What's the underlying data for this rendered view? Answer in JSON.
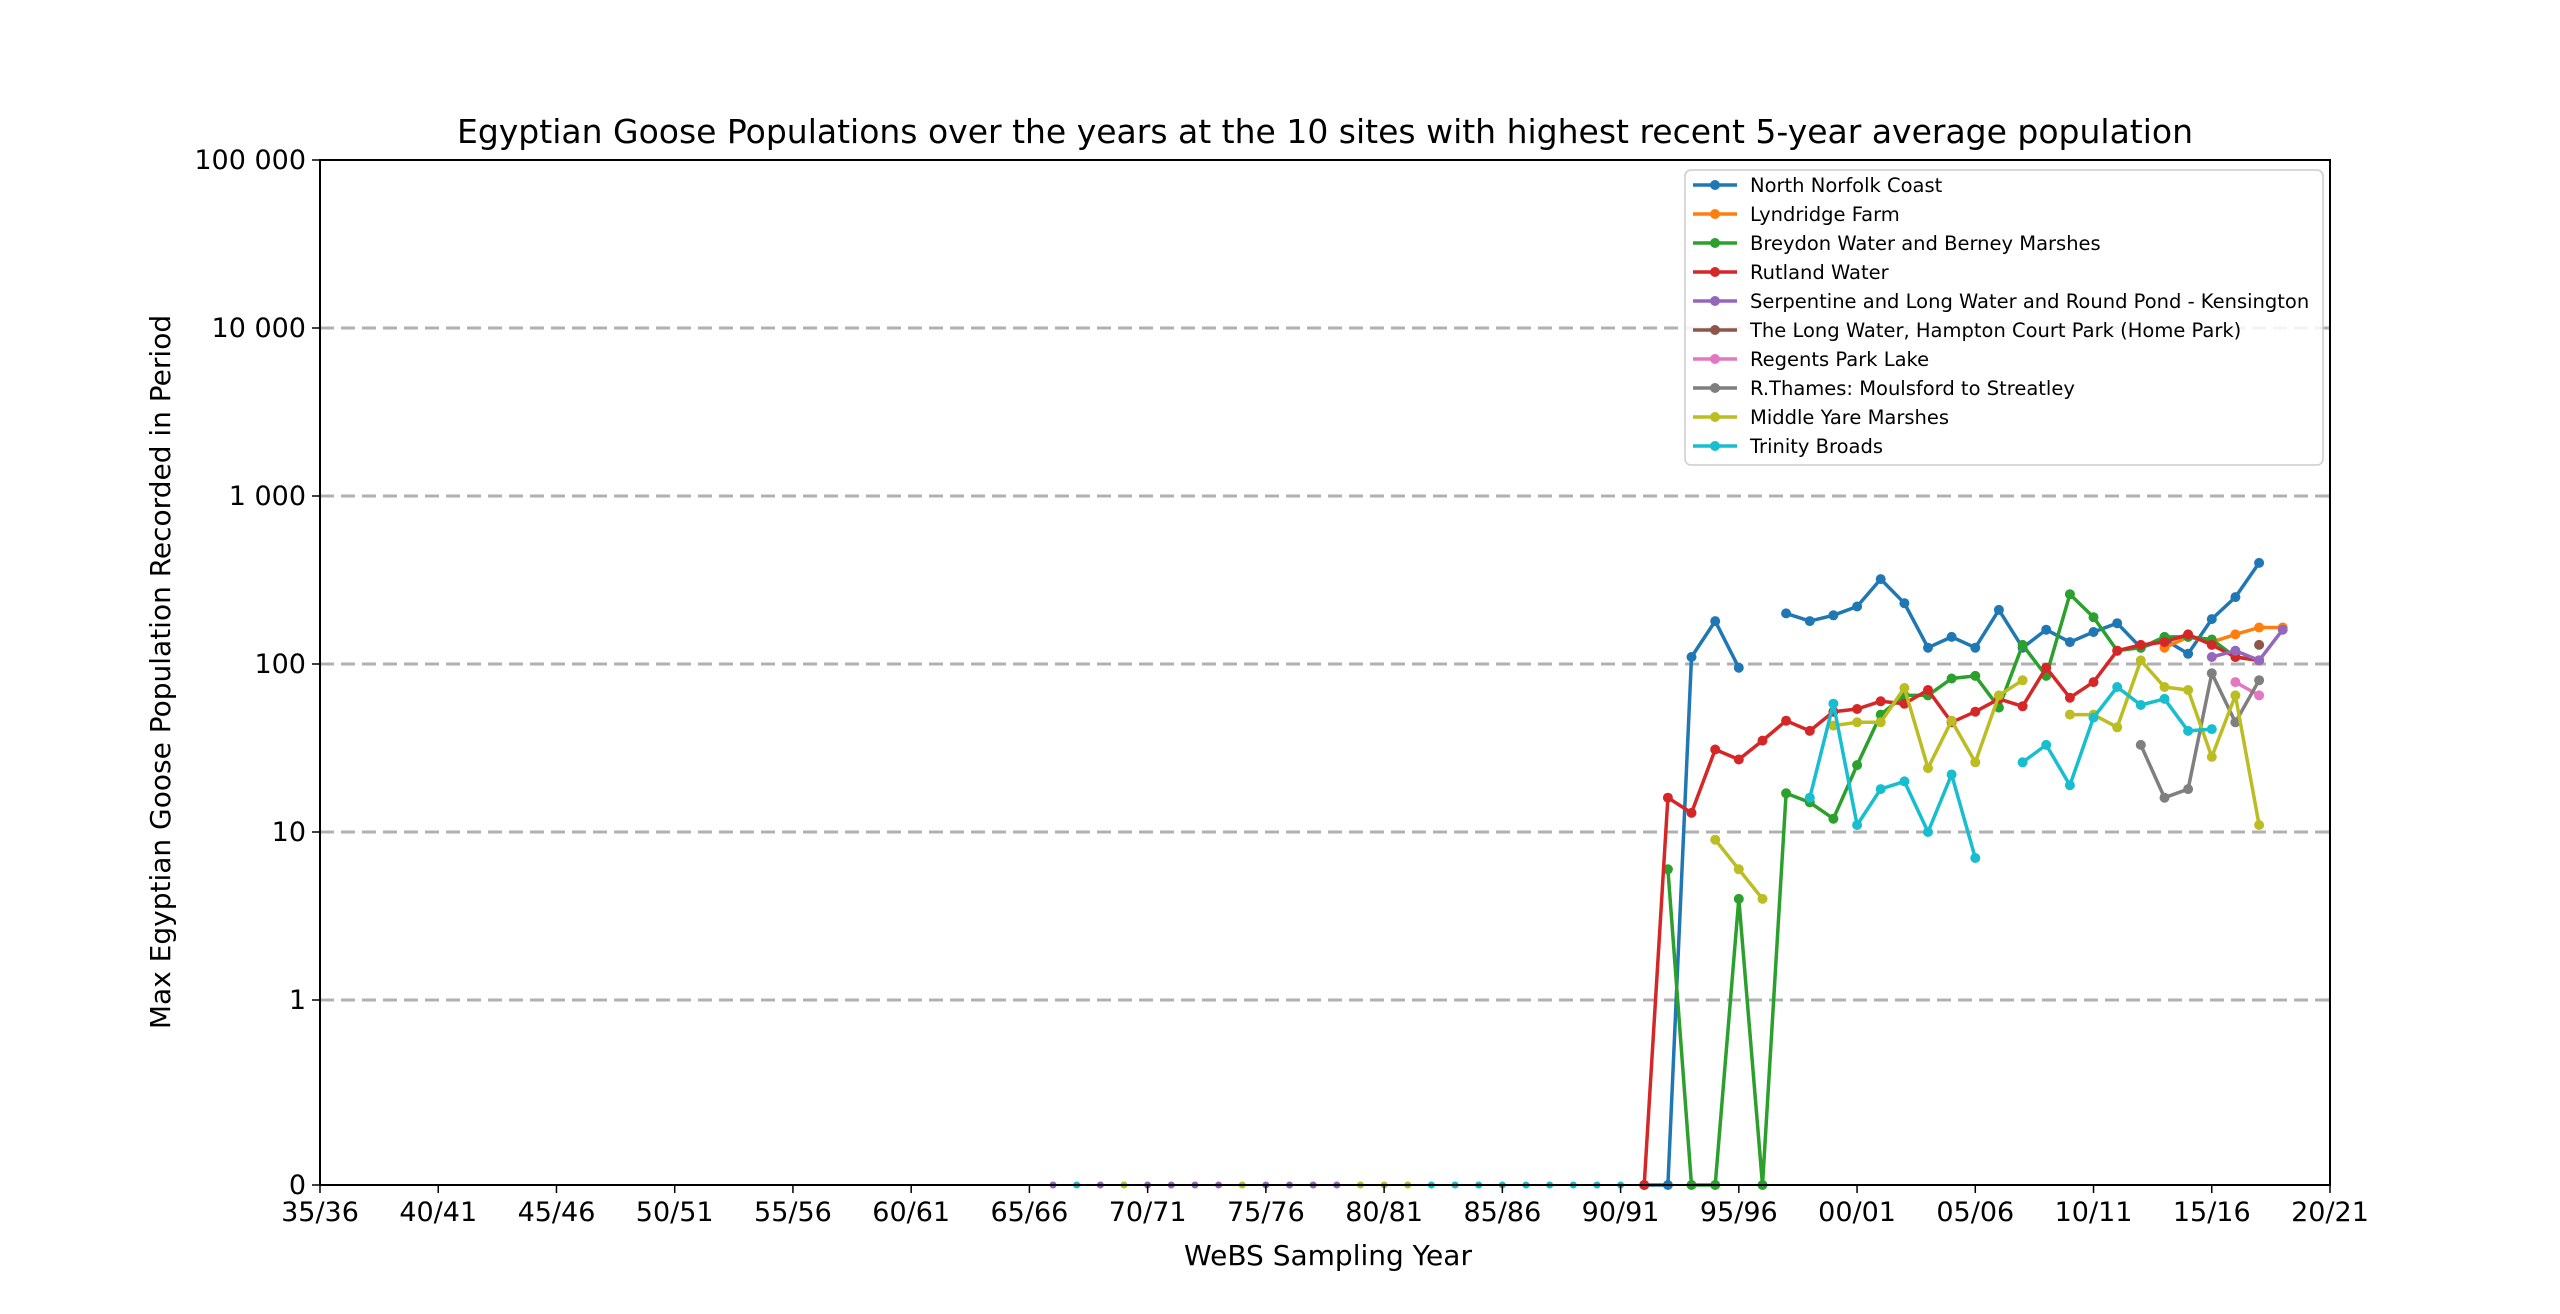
{
  "chart_data": {
    "type": "line",
    "title": "Egyptian Goose Populations over the years at the 10 sites with highest recent 5-year average population",
    "xlabel": "WeBS Sampling Year",
    "ylabel": "Max Egyptian Goose Population Recorded in Period",
    "x_tick_labels": [
      "35/36",
      "40/41",
      "45/46",
      "50/51",
      "55/56",
      "60/61",
      "65/66",
      "70/71",
      "75/76",
      "80/81",
      "85/86",
      "90/91",
      "95/96",
      "00/01",
      "05/06",
      "10/11",
      "15/16",
      "20/21"
    ],
    "y_tick_labels": [
      "0",
      "1",
      "10",
      "100",
      "1 000",
      "10 000",
      "100 000"
    ],
    "y_tick_values": [
      0,
      1,
      10,
      100,
      1000,
      10000,
      100000
    ],
    "y_scale": "symlog",
    "xlim": [
      "35/36",
      "20/21"
    ],
    "ylim": [
      0,
      100000
    ],
    "grid": "horizontal dashed",
    "legend_position": "upper right",
    "zero_markers": {
      "start": "66/67",
      "end": "90/91",
      "colors": [
        "#9467bd",
        "#17becf",
        "#9467bd",
        "#bcbd22",
        "#9467bd",
        "#9467bd",
        "#9467bd",
        "#9467bd",
        "#bcbd22",
        "#9467bd",
        "#9467bd",
        "#9467bd",
        "#9467bd",
        "#bcbd22",
        "#bcbd22",
        "#bcbd22",
        "#17becf",
        "#17becf",
        "#17becf",
        "#17becf",
        "#17becf",
        "#17becf",
        "#17becf",
        "#17becf",
        "#17becf"
      ]
    },
    "series": [
      {
        "name": "North Norfolk Coast",
        "color": "#1f77b4",
        "segments": [
          {
            "start": "91/92",
            "values": [
              0,
              0,
              110,
              180,
              95
            ]
          },
          {
            "start": "97/98",
            "values": [
              200,
              180,
              195,
              220,
              320,
              230,
              125,
              145,
              125,
              210,
              125,
              160,
              135,
              155,
              175,
              125,
              140,
              115,
              185,
              250,
              400
            ]
          }
        ]
      },
      {
        "name": "Lyndridge Farm",
        "color": "#ff7f0e",
        "segments": [
          {
            "start": "13/14",
            "values": [
              125,
              145,
              135,
              150,
              165,
              165
            ]
          }
        ]
      },
      {
        "name": "Breydon Water and Berney Marshes",
        "color": "#2ca02c",
        "segments": [
          {
            "start": "92/93",
            "values": [
              6,
              0,
              0,
              4,
              0,
              17,
              15,
              12,
              25,
              50,
              65,
              65,
              82,
              85,
              55,
              130,
              85,
              260,
              190,
              120,
              125,
              145,
              145,
              140,
              110,
              105
            ]
          }
        ]
      },
      {
        "name": "Rutland Water",
        "color": "#d62728",
        "segments": [
          {
            "start": "91/92",
            "values": [
              0,
              16,
              13,
              31,
              27,
              35,
              46,
              40,
              52,
              54,
              60,
              58,
              70,
              45,
              52,
              62,
              56,
              95,
              63,
              78,
              120,
              130,
              135,
              150,
              130,
              110,
              105
            ]
          }
        ]
      },
      {
        "name": "Serpentine and Long Water and Round Pond - Kensington",
        "color": "#9467bd",
        "segments": [
          {
            "start": "15/16",
            "values": [
              110,
              120,
              105,
              160
            ]
          }
        ]
      },
      {
        "name": "The Long Water, Hampton Court Park (Home Park)",
        "color": "#8c564b",
        "segments": [
          {
            "start": "17/18",
            "values": [
              130
            ]
          }
        ]
      },
      {
        "name": "Regents Park Lake",
        "color": "#e377c2",
        "segments": [
          {
            "start": "16/17",
            "values": [
              78,
              65
            ]
          }
        ]
      },
      {
        "name": "R.Thames: Moulsford to Streatley",
        "color": "#7f7f7f",
        "segments": [
          {
            "start": "12/13",
            "values": [
              33,
              16,
              18,
              88,
              45,
              80
            ]
          }
        ]
      },
      {
        "name": "Middle Yare Marshes",
        "color": "#bcbd22",
        "segments": [
          {
            "start": "94/95",
            "values": [
              9,
              6,
              4
            ]
          },
          {
            "start": "99/00",
            "values": [
              43,
              45,
              45,
              72,
              24,
              46,
              26,
              65,
              80
            ]
          },
          {
            "start": "09/10",
            "values": [
              50,
              50,
              42,
              105,
              73,
              70,
              28,
              65,
              11
            ]
          }
        ]
      },
      {
        "name": "Trinity Broads",
        "color": "#17becf",
        "segments": [
          {
            "start": "98/99",
            "values": [
              16,
              58,
              11,
              18,
              20,
              10,
              22,
              7
            ]
          },
          {
            "start": "07/08",
            "values": [
              26,
              33,
              19,
              48,
              73,
              57,
              62,
              40,
              41
            ]
          }
        ]
      }
    ]
  }
}
